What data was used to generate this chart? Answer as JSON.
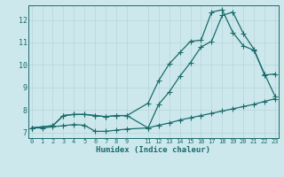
{
  "xlabel": "Humidex (Indice chaleur)",
  "bg_color": "#cde8ec",
  "grid_color": "#b8d4d8",
  "line_color": "#1a6b6b",
  "x_ticks": [
    0,
    1,
    2,
    3,
    4,
    5,
    6,
    7,
    8,
    9,
    11,
    12,
    13,
    14,
    15,
    16,
    17,
    18,
    19,
    20,
    21,
    22,
    23
  ],
  "y_ticks": [
    7,
    8,
    9,
    10,
    11,
    12
  ],
  "xlim": [
    -0.3,
    23.3
  ],
  "ylim": [
    6.75,
    12.65
  ],
  "line1_x": [
    0,
    1,
    2,
    3,
    4,
    5,
    6,
    7,
    8,
    9,
    11,
    12,
    13,
    14,
    15,
    16,
    17,
    18,
    19,
    20,
    21,
    22,
    23
  ],
  "line1_y": [
    7.2,
    7.2,
    7.25,
    7.3,
    7.35,
    7.32,
    7.05,
    7.05,
    7.1,
    7.15,
    7.2,
    7.32,
    7.42,
    7.55,
    7.65,
    7.75,
    7.85,
    7.95,
    8.05,
    8.15,
    8.25,
    8.38,
    8.5
  ],
  "line2_x": [
    0,
    2,
    3,
    4,
    5,
    6,
    7,
    8,
    9,
    11,
    12,
    13,
    14,
    15,
    16,
    17,
    18,
    19,
    20,
    21,
    22,
    23
  ],
  "line2_y": [
    7.2,
    7.3,
    7.75,
    7.8,
    7.8,
    7.75,
    7.7,
    7.75,
    7.75,
    7.2,
    8.25,
    8.8,
    9.5,
    10.1,
    10.8,
    11.05,
    12.2,
    12.35,
    11.4,
    10.7,
    9.55,
    9.6
  ],
  "line3_x": [
    0,
    2,
    3,
    4,
    5,
    6,
    7,
    8,
    9,
    11,
    12,
    13,
    14,
    15,
    16,
    17,
    18,
    19,
    20,
    21,
    22,
    23
  ],
  "line3_y": [
    7.2,
    7.3,
    7.75,
    7.8,
    7.8,
    7.75,
    7.7,
    7.75,
    7.75,
    8.3,
    9.3,
    10.05,
    10.55,
    11.05,
    11.1,
    12.35,
    12.45,
    11.45,
    10.85,
    10.65,
    9.6,
    8.6
  ]
}
